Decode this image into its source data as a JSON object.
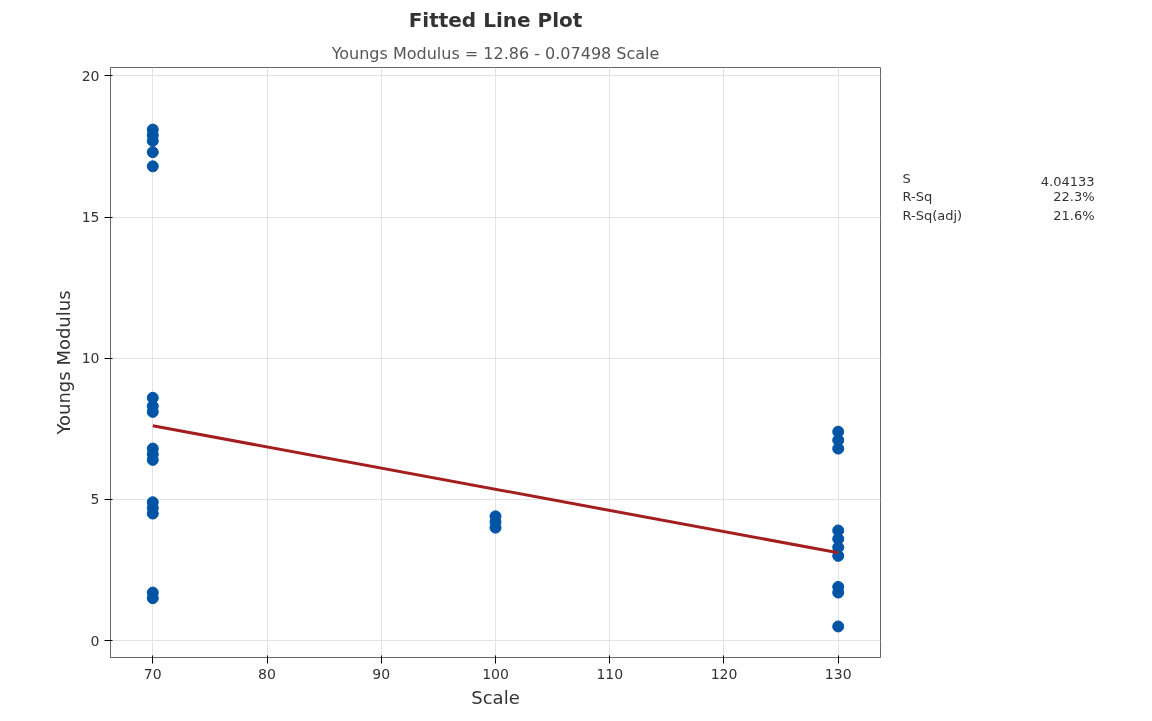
{
  "chart_data": {
    "type": "scatter",
    "title": "Fitted Line Plot",
    "subtitle": "Youngs Modulus = 12.86 - 0.07498 Scale",
    "xlabel": "Scale",
    "ylabel": "Youngs Modulus",
    "xlim": [
      66.3,
      133.7
    ],
    "ylim": [
      -0.6,
      20.3
    ],
    "xticks": [
      70,
      80,
      90,
      100,
      110,
      120,
      130
    ],
    "yticks": [
      0,
      5,
      10,
      15,
      20
    ],
    "grid": true,
    "marker": "circle",
    "annotations": [
      "S",
      "4.04133",
      "R-Sq",
      "22.3%",
      "R-Sq(adj)",
      "21.6%"
    ],
    "series": [
      {
        "color": "#0054a6",
        "x": [
          70,
          70,
          70,
          70,
          70,
          70,
          70,
          70,
          70,
          70,
          70,
          70,
          70,
          70,
          70,
          70,
          100,
          100,
          100,
          130,
          130,
          130,
          130,
          130,
          130,
          130,
          130,
          130,
          130
        ],
        "values": [
          18.1,
          17.9,
          17.7,
          17.3,
          16.8,
          8.6,
          8.3,
          8.1,
          6.8,
          6.6,
          6.4,
          4.9,
          4.7,
          4.5,
          1.7,
          1.5,
          4.4,
          4.2,
          4.0,
          7.4,
          7.1,
          6.8,
          3.9,
          3.6,
          3.3,
          3.0,
          1.9,
          1.7,
          0.5
        ]
      },
      {
        "type": "line",
        "marker": "none",
        "color": "#a31f1f",
        "x": [
          70,
          130
        ],
        "values": [
          7.61,
          3.11
        ]
      }
    ]
  }
}
